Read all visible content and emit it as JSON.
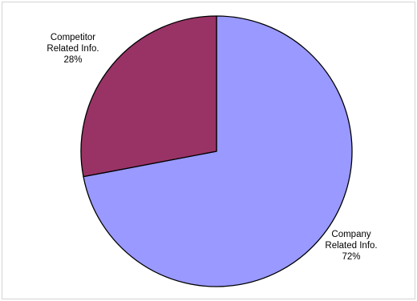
{
  "chart_data": {
    "type": "pie",
    "slices": [
      {
        "label_lines": [
          "Company",
          "Related Info."
        ],
        "percent_label": "72%",
        "value": 72,
        "color": "#9999ff"
      },
      {
        "label_lines": [
          "Competitor",
          "Related Info."
        ],
        "percent_label": "28%",
        "value": 28,
        "color": "#993366"
      }
    ],
    "start_angle": "12 o'clock",
    "direction": "clockwise",
    "legend": "none"
  }
}
